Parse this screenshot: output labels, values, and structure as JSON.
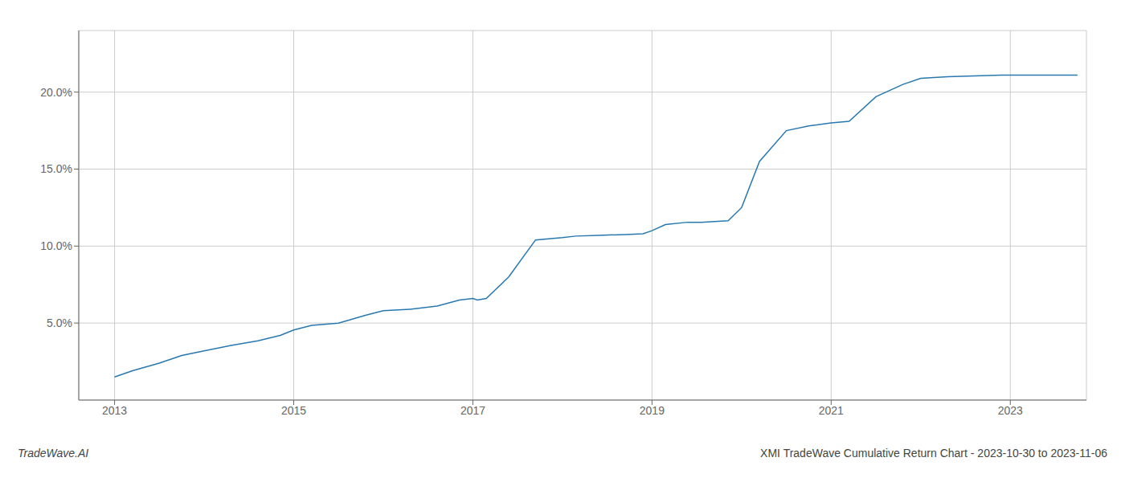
{
  "chart_data": {
    "type": "line",
    "title": "XMI TradeWave Cumulative Return Chart - 2023-10-30 to 2023-11-06",
    "annotations": [
      "TradeWave.AI"
    ],
    "color": "#2878b0",
    "grid": true,
    "x": [
      2013.0,
      2013.2,
      2013.5,
      2013.75,
      2014.0,
      2014.3,
      2014.6,
      2014.85,
      2015.0,
      2015.2,
      2015.5,
      2015.8,
      2016.0,
      2016.3,
      2016.6,
      2016.85,
      2017.0,
      2017.05,
      2017.15,
      2017.4,
      2017.7,
      2018.0,
      2018.15,
      2018.4,
      2018.7,
      2018.9,
      2019.0,
      2019.15,
      2019.4,
      2019.55,
      2019.7,
      2019.85,
      2020.0,
      2020.2,
      2020.5,
      2020.75,
      2021.0,
      2021.2,
      2021.5,
      2021.8,
      2022.0,
      2022.3,
      2022.6,
      2022.9,
      2023.0,
      2023.4,
      2023.75
    ],
    "values": [
      1.5,
      1.9,
      2.4,
      2.9,
      3.2,
      3.55,
      3.85,
      4.2,
      4.55,
      4.85,
      5.0,
      5.5,
      5.8,
      5.9,
      6.1,
      6.5,
      6.6,
      6.5,
      6.6,
      8.0,
      10.4,
      10.55,
      10.65,
      10.7,
      10.75,
      10.8,
      11.0,
      11.4,
      11.55,
      11.55,
      11.6,
      11.65,
      12.5,
      15.5,
      17.5,
      17.8,
      18.0,
      18.1,
      19.7,
      20.5,
      20.9,
      21.0,
      21.05,
      21.1,
      21.1,
      21.1,
      21.1
    ],
    "xlim": [
      2012.6,
      2023.85
    ],
    "ylim": [
      0,
      24
    ],
    "xticks": [
      2013,
      2015,
      2017,
      2019,
      2021,
      2023
    ],
    "yticks": [
      {
        "value": 5.0,
        "label": "5.0%"
      },
      {
        "value": 10.0,
        "label": "10.0%"
      },
      {
        "value": 15.0,
        "label": "15.0%"
      },
      {
        "value": 20.0,
        "label": "20.0%"
      }
    ]
  }
}
